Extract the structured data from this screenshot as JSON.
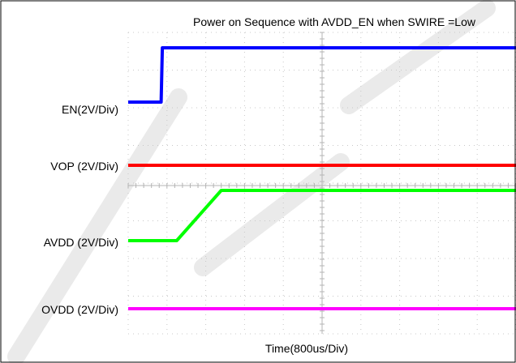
{
  "chart_data": {
    "type": "line",
    "title": "Power on Sequence with AVDD_EN when SWIRE =Low",
    "xlabel": "Time(800us/Div)",
    "ylabel": "",
    "grid": true,
    "x_divisions": 10,
    "x_unit_per_div": "800us",
    "x_range_div": [
      0,
      10
    ],
    "series": [
      {
        "name": "EN(2V/Div)",
        "color": "#0000ff",
        "points": [
          [
            0,
            0
          ],
          [
            0.85,
            0
          ],
          [
            0.88,
            1
          ],
          [
            10,
            1
          ]
        ]
      },
      {
        "name": "VOP (2V/Div)",
        "color": "#ff0000",
        "points": [
          [
            0,
            1
          ],
          [
            10,
            1
          ]
        ]
      },
      {
        "name": "AVDD (2V/Div)",
        "color": "#00ff00",
        "points": [
          [
            0,
            0
          ],
          [
            1.25,
            0
          ],
          [
            2.4,
            1
          ],
          [
            10,
            1
          ]
        ]
      },
      {
        "name": "OVDD (2V/Div)",
        "color": "#ff00ff",
        "points": [
          [
            0,
            1
          ],
          [
            10,
            1
          ]
        ]
      }
    ]
  }
}
